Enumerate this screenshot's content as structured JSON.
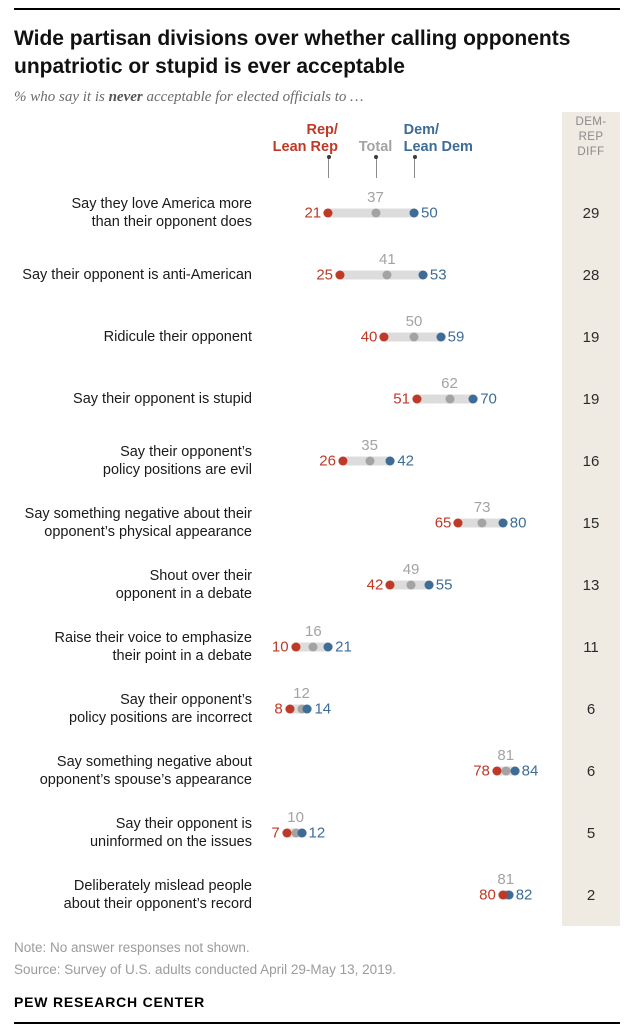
{
  "header": {
    "title": "Wide partisan divisions over whether calling opponents unpatriotic or stupid is ever acceptable",
    "subtitle_prefix": "% who say it is ",
    "subtitle_bold": "never",
    "subtitle_suffix": " acceptable for elected officials to …"
  },
  "legend": {
    "rep": "Rep/\nLean Rep",
    "total": "Total",
    "dem": "Dem/\nLean Dem"
  },
  "diff_header": "DEM-\nREP\nDIFF",
  "colors": {
    "rep": "#bf3927",
    "dem": "#3d6c96",
    "total": "#a3a3a3",
    "track": "#dcdcdc",
    "diff_band": "#efebe2"
  },
  "chart_data": {
    "type": "scatter",
    "title": "Wide partisan divisions over whether calling opponents unpatriotic or stupid is ever acceptable",
    "subtitle": "% who say it is never acceptable for elected officials to …",
    "xlabel": "",
    "ylabel": "",
    "xlim": [
      0,
      100
    ],
    "legend_position": "top",
    "grid": false,
    "categories": [
      "Say they love America more\nthan their opponent does",
      "Say their opponent is anti-American",
      "Ridicule their opponent",
      "Say their opponent is stupid",
      "Say their opponent’s\npolicy positions are evil",
      "Say something negative about their\nopponent’s physical appearance",
      "Shout over their\nopponent in a debate",
      "Raise their voice to emphasize\ntheir point in a debate",
      "Say their opponent’s\npolicy positions are incorrect",
      "Say something negative about\nopponent’s spouse’s appearance",
      "Say their opponent is\nuninformed on the issues",
      "Deliberately mislead people\nabout their opponent’s record"
    ],
    "series": [
      {
        "name": "Rep/Lean Rep",
        "color": "#bf3927",
        "values": [
          21,
          25,
          40,
          51,
          26,
          65,
          42,
          10,
          8,
          78,
          7,
          80
        ]
      },
      {
        "name": "Total",
        "color": "#a3a3a3",
        "values": [
          37,
          41,
          50,
          62,
          35,
          73,
          49,
          16,
          12,
          81,
          10,
          81
        ]
      },
      {
        "name": "Dem/Lean Dem",
        "color": "#3d6c96",
        "values": [
          50,
          53,
          59,
          70,
          42,
          80,
          55,
          21,
          14,
          84,
          12,
          82
        ]
      }
    ],
    "diff_label": "DEM-REP DIFF",
    "diffs": [
      29,
      28,
      19,
      19,
      16,
      15,
      13,
      11,
      6,
      6,
      5,
      2
    ]
  },
  "notes": {
    "note": "Note: No answer responses not shown.",
    "source": "Source: Survey of U.S. adults conducted April 29-May 13, 2019.",
    "footer": "PEW RESEARCH CENTER"
  }
}
